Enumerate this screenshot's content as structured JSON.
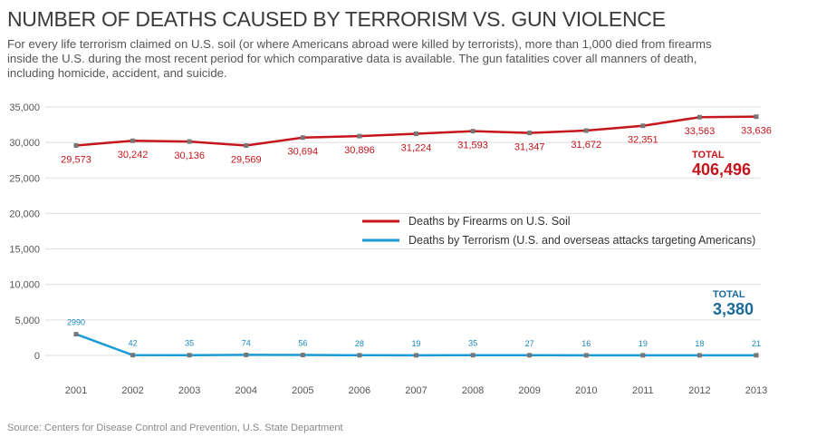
{
  "title": "NUMBER OF DEATHS CAUSED BY TERRORISM VS. GUN VIOLENCE",
  "subtitle": "For every life terrorism claimed on U.S. soil (or where Americans abroad were killed by terrorists), more than 1,000 died from firearms inside the U.S. during the most recent period for which comparative data is available. The gun fatalities cover all manners of death, including homicide, accident, and suicide.",
  "source": "Source: Centers for Disease Control and Prevention, U.S. State Department",
  "colors": {
    "firearms": "#c4161c",
    "terrorism": "#1a9ad6",
    "terrorism_total": "#1a6a9a"
  },
  "chart_data": {
    "type": "line",
    "title": "NUMBER OF DEATHS CAUSED BY TERRORISM VS. GUN VIOLENCE",
    "xlabel": "",
    "ylabel": "",
    "ylim": [
      0,
      35000
    ],
    "yticks": [
      "35,000",
      "30,000",
      "25,000",
      "20,000",
      "15,000",
      "10,000",
      "5,000",
      "0"
    ],
    "ytick_values": [
      35000,
      30000,
      25000,
      20000,
      15000,
      10000,
      5000,
      0
    ],
    "grid": true,
    "legend_position": "center-right",
    "x": [
      "2001",
      "2002",
      "2003",
      "2004",
      "2005",
      "2006",
      "2007",
      "2008",
      "2009",
      "2010",
      "2011",
      "2012",
      "2013"
    ],
    "series": [
      {
        "name": "Deaths by Firearms on U.S. Soil",
        "values": [
          29573,
          30242,
          30136,
          29569,
          30694,
          30896,
          31224,
          31593,
          31347,
          31672,
          32351,
          33563,
          33636
        ],
        "labels": [
          "29,573",
          "30,242",
          "30,136",
          "29,569",
          "30,694",
          "30,896",
          "31,224",
          "31,593",
          "31,347",
          "31,672",
          "32,351",
          "33,563",
          "33,636"
        ],
        "total_label": "TOTAL",
        "total": "406,496"
      },
      {
        "name": "Deaths by Terrorism (U.S. and overseas attacks targeting Americans)",
        "values": [
          2990,
          42,
          35,
          74,
          56,
          28,
          19,
          35,
          27,
          16,
          19,
          18,
          21
        ],
        "labels": [
          "2990",
          "42",
          "35",
          "74",
          "56",
          "28",
          "19",
          "35",
          "27",
          "16",
          "19",
          "18",
          "21"
        ],
        "total_label": "TOTAL",
        "total": "3,380"
      }
    ]
  }
}
